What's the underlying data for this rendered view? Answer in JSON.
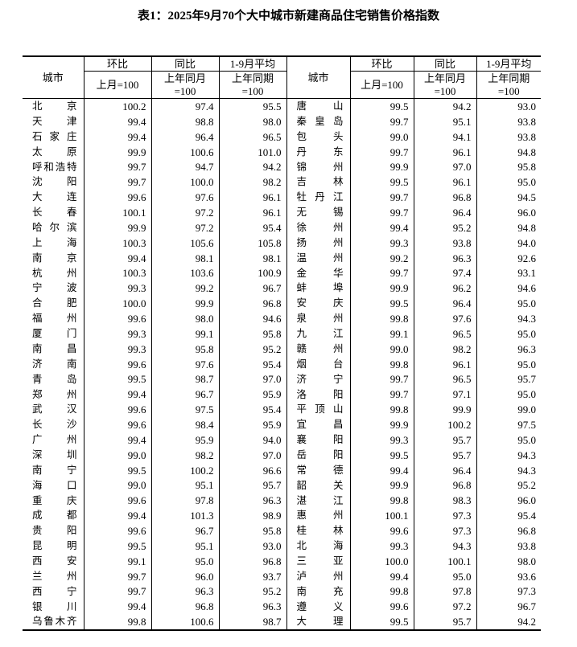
{
  "title": "表1：2025年9月70个大中城市新建商品住宅销售价格指数",
  "header": {
    "city": "城市",
    "mom": "环比",
    "mom_base": "上月=100",
    "yoy": "同比",
    "yoy_base_1": "上年同月",
    "yoy_base_2": "=100",
    "avg": "1-9月平均",
    "avg_base_1": "上年同期",
    "avg_base_2": "=100"
  },
  "rows": [
    {
      "left": {
        "city": "北京",
        "mom": "100.2",
        "yoy": "97.4",
        "avg": "95.5"
      },
      "right": {
        "city": "唐山",
        "mom": "99.5",
        "yoy": "94.2",
        "avg": "93.0"
      }
    },
    {
      "left": {
        "city": "天津",
        "mom": "99.4",
        "yoy": "98.8",
        "avg": "98.0"
      },
      "right": {
        "city": "秦皇岛",
        "mom": "99.7",
        "yoy": "95.1",
        "avg": "93.8"
      }
    },
    {
      "left": {
        "city": "石家庄",
        "mom": "99.4",
        "yoy": "96.4",
        "avg": "96.5"
      },
      "right": {
        "city": "包头",
        "mom": "99.0",
        "yoy": "94.1",
        "avg": "93.8"
      }
    },
    {
      "left": {
        "city": "太原",
        "mom": "99.9",
        "yoy": "100.6",
        "avg": "101.0"
      },
      "right": {
        "city": "丹东",
        "mom": "99.7",
        "yoy": "96.1",
        "avg": "94.8"
      }
    },
    {
      "left": {
        "city": "呼和浩特",
        "mom": "99.7",
        "yoy": "94.7",
        "avg": "94.2"
      },
      "right": {
        "city": "锦州",
        "mom": "99.9",
        "yoy": "97.0",
        "avg": "95.8"
      }
    },
    {
      "left": {
        "city": "沈阳",
        "mom": "99.7",
        "yoy": "100.0",
        "avg": "98.2"
      },
      "right": {
        "city": "吉林",
        "mom": "99.5",
        "yoy": "96.1",
        "avg": "95.0"
      }
    },
    {
      "left": {
        "city": "大连",
        "mom": "99.6",
        "yoy": "97.6",
        "avg": "96.1"
      },
      "right": {
        "city": "牡丹江",
        "mom": "99.7",
        "yoy": "96.8",
        "avg": "94.5"
      }
    },
    {
      "left": {
        "city": "长春",
        "mom": "100.1",
        "yoy": "97.2",
        "avg": "96.1"
      },
      "right": {
        "city": "无锡",
        "mom": "99.7",
        "yoy": "96.4",
        "avg": "96.0"
      }
    },
    {
      "left": {
        "city": "哈尔滨",
        "mom": "99.9",
        "yoy": "97.2",
        "avg": "95.4"
      },
      "right": {
        "city": "徐州",
        "mom": "99.4",
        "yoy": "95.2",
        "avg": "94.8"
      }
    },
    {
      "left": {
        "city": "上海",
        "mom": "100.3",
        "yoy": "105.6",
        "avg": "105.8"
      },
      "right": {
        "city": "扬州",
        "mom": "99.3",
        "yoy": "93.8",
        "avg": "94.0"
      }
    },
    {
      "left": {
        "city": "南京",
        "mom": "99.4",
        "yoy": "98.1",
        "avg": "98.1"
      },
      "right": {
        "city": "温州",
        "mom": "99.2",
        "yoy": "96.3",
        "avg": "92.6"
      }
    },
    {
      "left": {
        "city": "杭州",
        "mom": "100.3",
        "yoy": "103.6",
        "avg": "100.9"
      },
      "right": {
        "city": "金华",
        "mom": "99.7",
        "yoy": "97.4",
        "avg": "93.1"
      }
    },
    {
      "left": {
        "city": "宁波",
        "mom": "99.3",
        "yoy": "99.2",
        "avg": "96.7"
      },
      "right": {
        "city": "蚌埠",
        "mom": "99.9",
        "yoy": "96.2",
        "avg": "94.6"
      }
    },
    {
      "left": {
        "city": "合肥",
        "mom": "100.0",
        "yoy": "99.9",
        "avg": "96.8"
      },
      "right": {
        "city": "安庆",
        "mom": "99.5",
        "yoy": "96.4",
        "avg": "95.0"
      }
    },
    {
      "left": {
        "city": "福州",
        "mom": "99.6",
        "yoy": "98.0",
        "avg": "94.6"
      },
      "right": {
        "city": "泉州",
        "mom": "99.8",
        "yoy": "97.6",
        "avg": "94.3"
      }
    },
    {
      "left": {
        "city": "厦门",
        "mom": "99.3",
        "yoy": "99.1",
        "avg": "95.8"
      },
      "right": {
        "city": "九江",
        "mom": "99.1",
        "yoy": "96.5",
        "avg": "95.0"
      }
    },
    {
      "left": {
        "city": "南昌",
        "mom": "99.3",
        "yoy": "95.8",
        "avg": "95.2"
      },
      "right": {
        "city": "赣州",
        "mom": "99.0",
        "yoy": "98.2",
        "avg": "96.3"
      }
    },
    {
      "left": {
        "city": "济南",
        "mom": "99.6",
        "yoy": "97.6",
        "avg": "95.4"
      },
      "right": {
        "city": "烟台",
        "mom": "99.8",
        "yoy": "96.1",
        "avg": "95.0"
      }
    },
    {
      "left": {
        "city": "青岛",
        "mom": "99.5",
        "yoy": "98.7",
        "avg": "97.0"
      },
      "right": {
        "city": "济宁",
        "mom": "99.7",
        "yoy": "96.5",
        "avg": "95.7"
      }
    },
    {
      "left": {
        "city": "郑州",
        "mom": "99.4",
        "yoy": "96.7",
        "avg": "95.9"
      },
      "right": {
        "city": "洛阳",
        "mom": "99.7",
        "yoy": "97.1",
        "avg": "95.0"
      }
    },
    {
      "left": {
        "city": "武汉",
        "mom": "99.6",
        "yoy": "97.5",
        "avg": "95.4"
      },
      "right": {
        "city": "平顶山",
        "mom": "99.8",
        "yoy": "99.9",
        "avg": "99.0"
      }
    },
    {
      "left": {
        "city": "长沙",
        "mom": "99.6",
        "yoy": "98.4",
        "avg": "95.9"
      },
      "right": {
        "city": "宜昌",
        "mom": "99.9",
        "yoy": "100.2",
        "avg": "97.5"
      }
    },
    {
      "left": {
        "city": "广州",
        "mom": "99.4",
        "yoy": "95.9",
        "avg": "94.0"
      },
      "right": {
        "city": "襄阳",
        "mom": "99.3",
        "yoy": "95.7",
        "avg": "95.0"
      }
    },
    {
      "left": {
        "city": "深圳",
        "mom": "99.0",
        "yoy": "98.2",
        "avg": "97.0"
      },
      "right": {
        "city": "岳阳",
        "mom": "99.5",
        "yoy": "95.7",
        "avg": "94.3"
      }
    },
    {
      "left": {
        "city": "南宁",
        "mom": "99.5",
        "yoy": "100.2",
        "avg": "96.6"
      },
      "right": {
        "city": "常德",
        "mom": "99.4",
        "yoy": "96.4",
        "avg": "94.3"
      }
    },
    {
      "left": {
        "city": "海口",
        "mom": "99.0",
        "yoy": "95.1",
        "avg": "95.7"
      },
      "right": {
        "city": "韶关",
        "mom": "99.9",
        "yoy": "96.8",
        "avg": "95.2"
      }
    },
    {
      "left": {
        "city": "重庆",
        "mom": "99.6",
        "yoy": "97.8",
        "avg": "96.3"
      },
      "right": {
        "city": "湛江",
        "mom": "99.8",
        "yoy": "98.3",
        "avg": "96.0"
      }
    },
    {
      "left": {
        "city": "成都",
        "mom": "99.4",
        "yoy": "101.3",
        "avg": "98.9"
      },
      "right": {
        "city": "惠州",
        "mom": "100.1",
        "yoy": "97.3",
        "avg": "95.4"
      }
    },
    {
      "left": {
        "city": "贵阳",
        "mom": "99.6",
        "yoy": "96.7",
        "avg": "95.8"
      },
      "right": {
        "city": "桂林",
        "mom": "99.6",
        "yoy": "97.3",
        "avg": "96.8"
      }
    },
    {
      "left": {
        "city": "昆明",
        "mom": "99.5",
        "yoy": "95.1",
        "avg": "93.0"
      },
      "right": {
        "city": "北海",
        "mom": "99.3",
        "yoy": "94.3",
        "avg": "93.8"
      }
    },
    {
      "left": {
        "city": "西安",
        "mom": "99.1",
        "yoy": "95.0",
        "avg": "96.8"
      },
      "right": {
        "city": "三亚",
        "mom": "100.0",
        "yoy": "100.1",
        "avg": "98.0"
      }
    },
    {
      "left": {
        "city": "兰州",
        "mom": "99.7",
        "yoy": "96.0",
        "avg": "93.7"
      },
      "right": {
        "city": "泸州",
        "mom": "99.4",
        "yoy": "95.0",
        "avg": "93.6"
      }
    },
    {
      "left": {
        "city": "西宁",
        "mom": "99.7",
        "yoy": "96.3",
        "avg": "95.2"
      },
      "right": {
        "city": "南充",
        "mom": "99.8",
        "yoy": "97.8",
        "avg": "97.3"
      }
    },
    {
      "left": {
        "city": "银川",
        "mom": "99.4",
        "yoy": "96.8",
        "avg": "96.3"
      },
      "right": {
        "city": "遵义",
        "mom": "99.6",
        "yoy": "97.2",
        "avg": "96.7"
      }
    },
    {
      "left": {
        "city": "乌鲁木齐",
        "mom": "99.8",
        "yoy": "100.6",
        "avg": "98.7"
      },
      "right": {
        "city": "大理",
        "mom": "99.5",
        "yoy": "95.7",
        "avg": "94.2"
      }
    }
  ]
}
